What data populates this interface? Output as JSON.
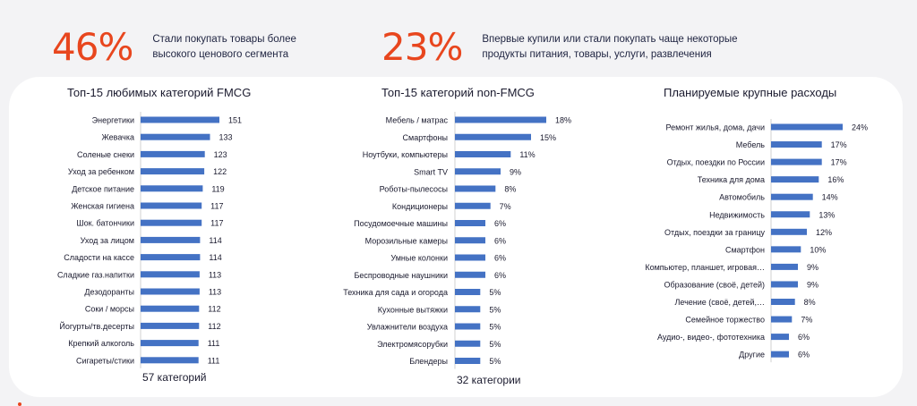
{
  "stats": [
    {
      "value": "46%",
      "text_line1": "Стали покупать товары более",
      "text_line2": "высокого ценового сегмента"
    },
    {
      "value": "23%",
      "text_line1": "Впервые купили или  стали покупать чаще некоторые",
      "text_line2": "продукты питания, товары, услуги, развлечения"
    }
  ],
  "colors": {
    "accent": "#e8461e",
    "bar": "#4472c4"
  },
  "chart_data": [
    {
      "type": "bar",
      "orientation": "horizontal",
      "title": "Топ-15 любимых категорий FMCG",
      "footer": "57 категорий",
      "categories": [
        "Энергетики",
        "Жевачка",
        "Соленые снеки",
        "Уход за ребенком",
        "Детское питание",
        "Женская гигиена",
        "Шок. батончики",
        "Уход за лицом",
        "Сладости на кассе",
        "Сладкие газ.напитки",
        "Дезодоранты",
        "Соки / морсы",
        "Йогурты/тв.десерты",
        "Крепкий алкоголь",
        "Сигареты/стики"
      ],
      "values": [
        151,
        133,
        123,
        122,
        119,
        117,
        117,
        114,
        114,
        113,
        113,
        112,
        112,
        111,
        111
      ],
      "labels": [
        "151",
        "133",
        "123",
        "122",
        "119",
        "117",
        "117",
        "114",
        "114",
        "113",
        "113",
        "112",
        "112",
        "111",
        "111"
      ],
      "xlim": [
        0,
        151
      ]
    },
    {
      "type": "bar",
      "orientation": "horizontal",
      "title": "Топ-15 категорий non-FMCG",
      "footer": "32 категории",
      "categories": [
        "Мебель / матрас",
        "Смартфоны",
        "Ноутбуки, компьютеры",
        "Smart TV",
        "Роботы-пылесосы",
        "Кондиционеры",
        "Посудомоечные машины",
        "Морозильные камеры",
        "Умные колонки",
        "Беспроводные наушники",
        "Техника для сада и огорода",
        "Кухонные вытяжки",
        "Увлажнители воздуха",
        "Электромясорубки",
        "Блендеры"
      ],
      "values": [
        18,
        15,
        11,
        9,
        8,
        7,
        6,
        6,
        6,
        6,
        5,
        5,
        5,
        5,
        5
      ],
      "labels": [
        "18%",
        "15%",
        "11%",
        "9%",
        "8%",
        "7%",
        "6%",
        "6%",
        "6%",
        "6%",
        "5%",
        "5%",
        "5%",
        "5%",
        "5%"
      ],
      "xlim": [
        0,
        18
      ]
    },
    {
      "type": "bar",
      "orientation": "horizontal",
      "title": "Планируемые крупные расходы",
      "footer": "",
      "categories": [
        "Ремонт жилья, дома, дачи",
        "Мебель",
        "Отдых, поездки по России",
        "Техника для дома",
        "Автомобиль",
        "Недвижимость",
        "Отдых, поездки за границу",
        "Смартфон",
        "Компьютер, планшет, игровая…",
        "Образование (своё, детей)",
        "Лечение (своё, детей,…",
        "Семейное торжество",
        "Аудио-, видео-, фототехника",
        "Другие"
      ],
      "values": [
        24,
        17,
        17,
        16,
        14,
        13,
        12,
        10,
        9,
        9,
        8,
        7,
        6,
        6
      ],
      "labels": [
        "24%",
        "17%",
        "17%",
        "16%",
        "14%",
        "13%",
        "12%",
        "10%",
        "9%",
        "9%",
        "8%",
        "7%",
        "6%",
        "6%"
      ],
      "xlim": [
        0,
        24
      ]
    }
  ]
}
